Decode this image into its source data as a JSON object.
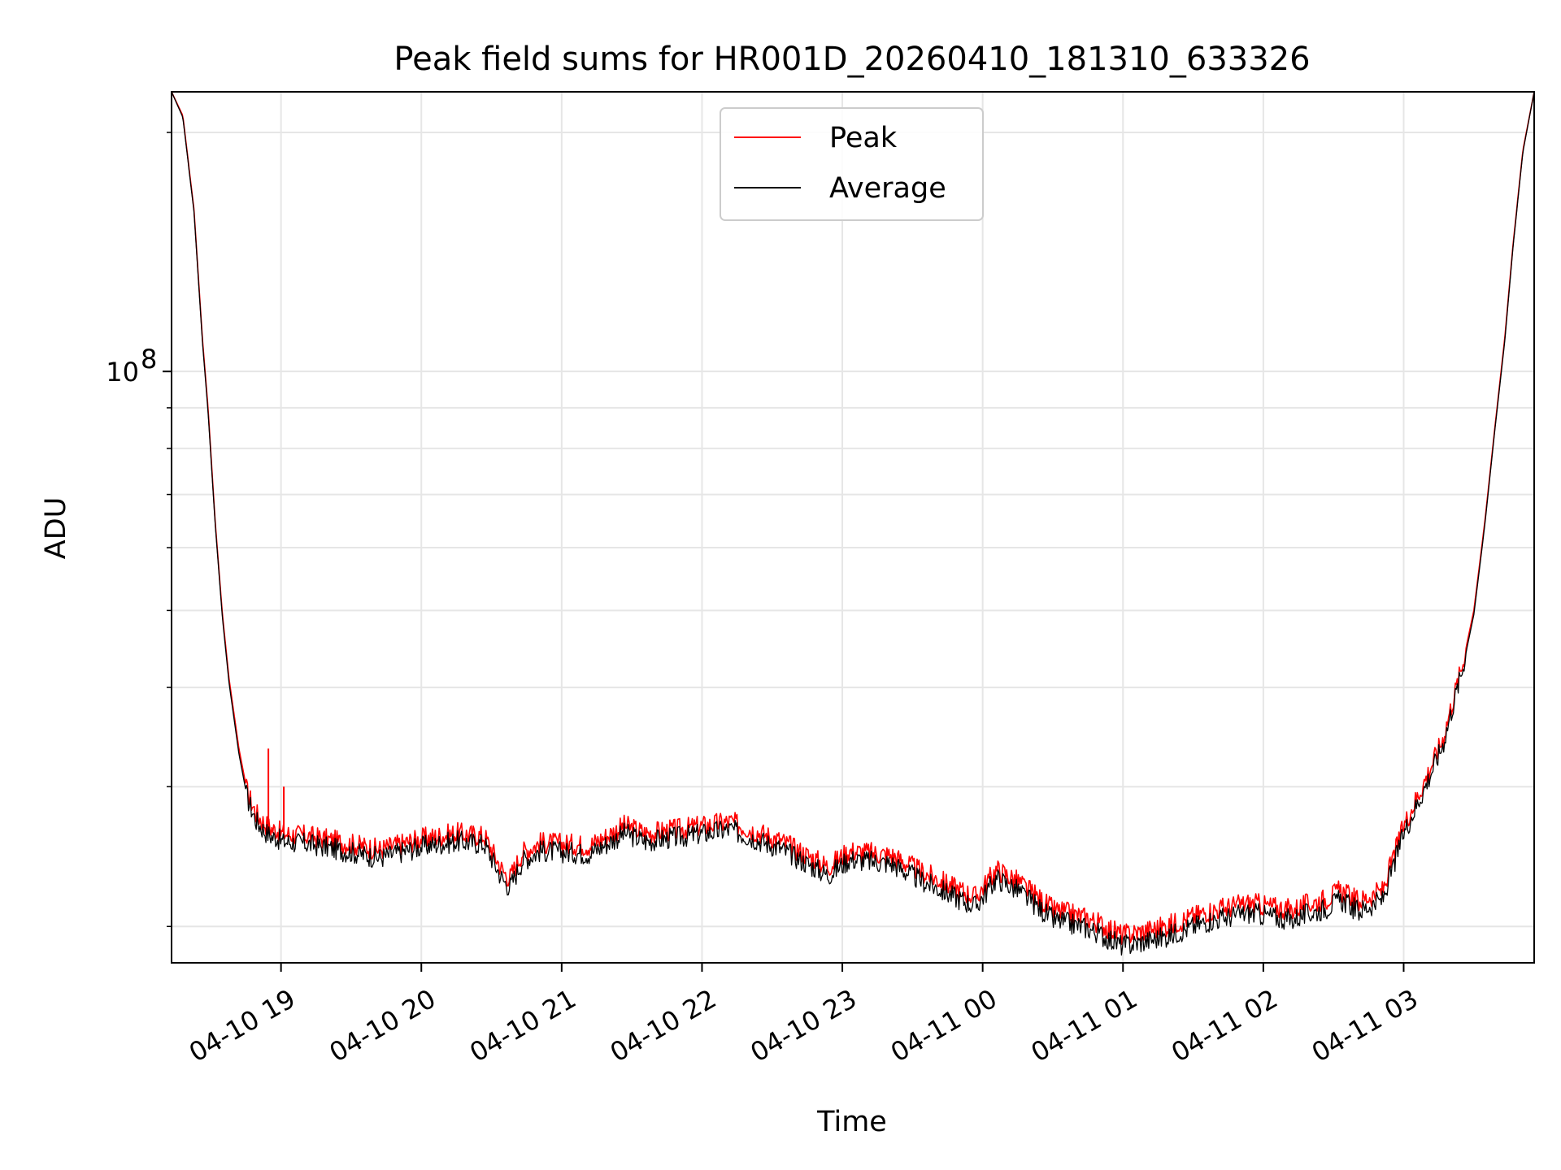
{
  "chart_data": {
    "type": "line",
    "title": "Peak field sums for HR001D_20260410_181310_633326",
    "xlabel": "Time",
    "ylabel": "ADU",
    "yscale": "log",
    "grid": true,
    "legend_position": "top-center",
    "colors": {
      "Peak": "#ff0000",
      "Average": "#000000",
      "grid": "#e6e6e6"
    },
    "x_hours_range": [
      -0.78,
      8.93
    ],
    "ylim": [
      18000000,
      225000000
    ],
    "x_tick_values": [
      0,
      1,
      2,
      3,
      4,
      5,
      6,
      7,
      8
    ],
    "x_tick_labels": [
      "04-10 19",
      "04-10 20",
      "04-10 21",
      "04-10 22",
      "04-10 23",
      "04-11 00",
      "04-11 01",
      "04-11 02",
      "04-11 03"
    ],
    "y_major_ticks": [
      100000000
    ],
    "y_major_tick_labels": [
      "10",
      "8"
    ],
    "y_minor_ticks": [
      20000000,
      30000000,
      40000000,
      50000000,
      60000000,
      70000000,
      80000000,
      90000000,
      200000000
    ],
    "series": [
      {
        "name": "Peak",
        "x": [
          -0.78,
          -0.7,
          -0.62,
          -0.56,
          -0.52,
          -0.47,
          -0.42,
          -0.37,
          -0.3,
          -0.24,
          -0.18,
          -0.12,
          -0.06,
          -0.03,
          0.0,
          0.2,
          0.45,
          0.7,
          1.0,
          1.25,
          1.45,
          1.58,
          1.63,
          1.72,
          1.85,
          2.2,
          2.45,
          2.6,
          2.9,
          3.2,
          3.55,
          3.9,
          4.05,
          4.35,
          4.55,
          4.8,
          4.95,
          5.1,
          5.25,
          5.5,
          5.75,
          6.0,
          6.3,
          6.6,
          6.9,
          7.2,
          7.45,
          7.55,
          7.68,
          7.75,
          7.85,
          7.92,
          8.0,
          8.15,
          8.28,
          8.35,
          8.42,
          8.5,
          8.58,
          8.65,
          8.72,
          8.78,
          8.85,
          8.93
        ],
        "y": [
          225000000,
          210000000,
          160000000,
          110000000,
          90000000,
          65000000,
          50000000,
          41000000,
          33500000,
          29500000,
          27800000,
          27000000,
          26500000,
          26500000,
          26200000,
          26000000,
          25500000,
          25000000,
          25800000,
          26200000,
          26000000,
          23500000,
          23000000,
          24800000,
          25500000,
          25300000,
          26800000,
          26200000,
          26600000,
          27100000,
          25700000,
          23800000,
          24900000,
          24600000,
          23500000,
          22400000,
          21800000,
          23600000,
          22800000,
          21000000,
          20500000,
          19500000,
          20000000,
          20900000,
          21400000,
          21000000,
          21700000,
          22200000,
          21500000,
          21800000,
          22200000,
          24200000,
          26800000,
          30500000,
          34500000,
          38500000,
          42800000,
          50000000,
          65000000,
          85000000,
          110000000,
          145000000,
          190000000,
          225000000
        ]
      },
      {
        "name": "Average",
        "x": [
          -0.78,
          -0.7,
          -0.62,
          -0.56,
          -0.52,
          -0.47,
          -0.42,
          -0.37,
          -0.3,
          -0.24,
          -0.18,
          -0.12,
          -0.06,
          -0.03,
          0.0,
          0.2,
          0.45,
          0.7,
          1.0,
          1.25,
          1.45,
          1.58,
          1.63,
          1.72,
          1.85,
          2.2,
          2.45,
          2.6,
          2.9,
          3.2,
          3.55,
          3.9,
          4.05,
          4.35,
          4.55,
          4.8,
          4.95,
          5.1,
          5.25,
          5.5,
          5.75,
          6.0,
          6.3,
          6.6,
          6.9,
          7.2,
          7.45,
          7.55,
          7.68,
          7.75,
          7.85,
          7.92,
          8.0,
          8.15,
          8.28,
          8.35,
          8.42,
          8.5,
          8.58,
          8.65,
          8.72,
          8.78,
          8.85,
          8.93
        ],
        "y": [
          225000000,
          209000000,
          159000000,
          109000000,
          89000000,
          64500000,
          49500000,
          40500000,
          33000000,
          29000000,
          27200000,
          26400000,
          25900000,
          25900000,
          25600000,
          25400000,
          24900000,
          24400000,
          25200000,
          25600000,
          25400000,
          22900000,
          22400000,
          24200000,
          24900000,
          24700000,
          26200000,
          25600000,
          26000000,
          26500000,
          25100000,
          23200000,
          24300000,
          24000000,
          22900000,
          21800000,
          21200000,
          23000000,
          22200000,
          20400000,
          19900000,
          18900000,
          19400000,
          20300000,
          20800000,
          20400000,
          21100000,
          21600000,
          20900000,
          21200000,
          21600000,
          23600000,
          26200000,
          29900000,
          33900000,
          37900000,
          42200000,
          49400000,
          64400000,
          84400000,
          109000000,
          144000000,
          189000000,
          225000000
        ]
      }
    ],
    "spikes": [
      {
        "series": "Peak",
        "x": -0.09,
        "y": 33500000
      },
      {
        "series": "Peak",
        "x": 0.02,
        "y": 30000000
      }
    ]
  }
}
